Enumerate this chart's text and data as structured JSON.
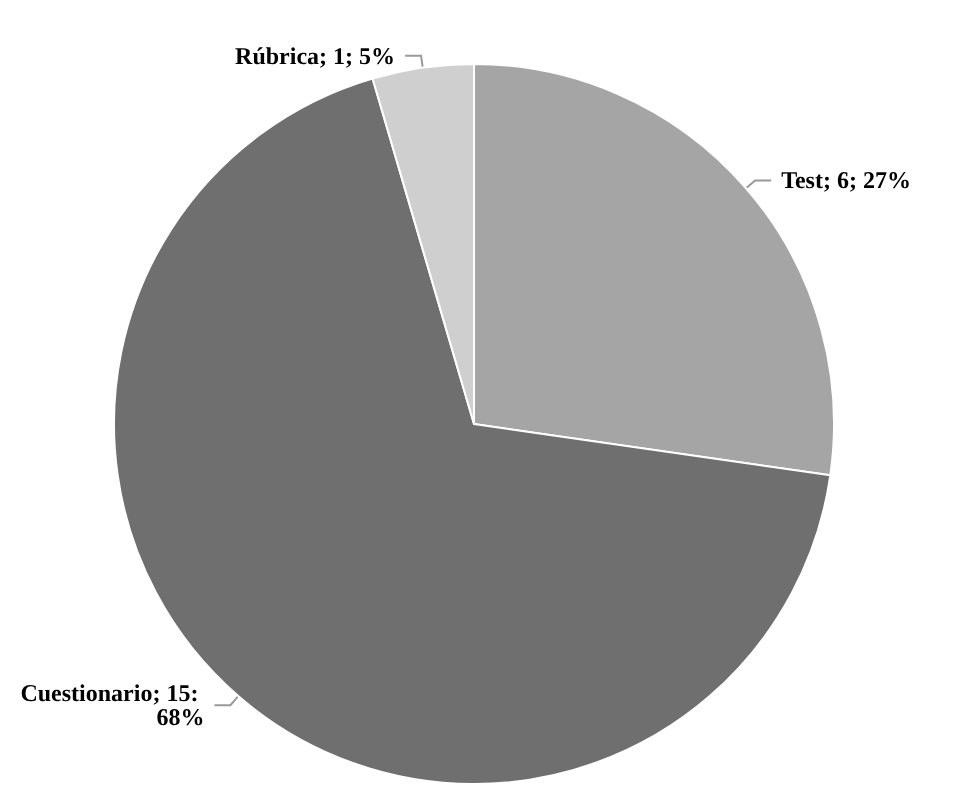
{
  "chart_data": {
    "type": "pie",
    "categories": [
      "Test",
      "Cuestionario",
      "Rúbrica"
    ],
    "values": [
      6,
      15,
      1
    ],
    "colors": [
      "#a5a5a5",
      "#6f6f6f",
      "#cfcfcf"
    ],
    "value_labels": [
      "6; 27%",
      "15: 68%",
      "1; 5%"
    ],
    "legend": false
  }
}
